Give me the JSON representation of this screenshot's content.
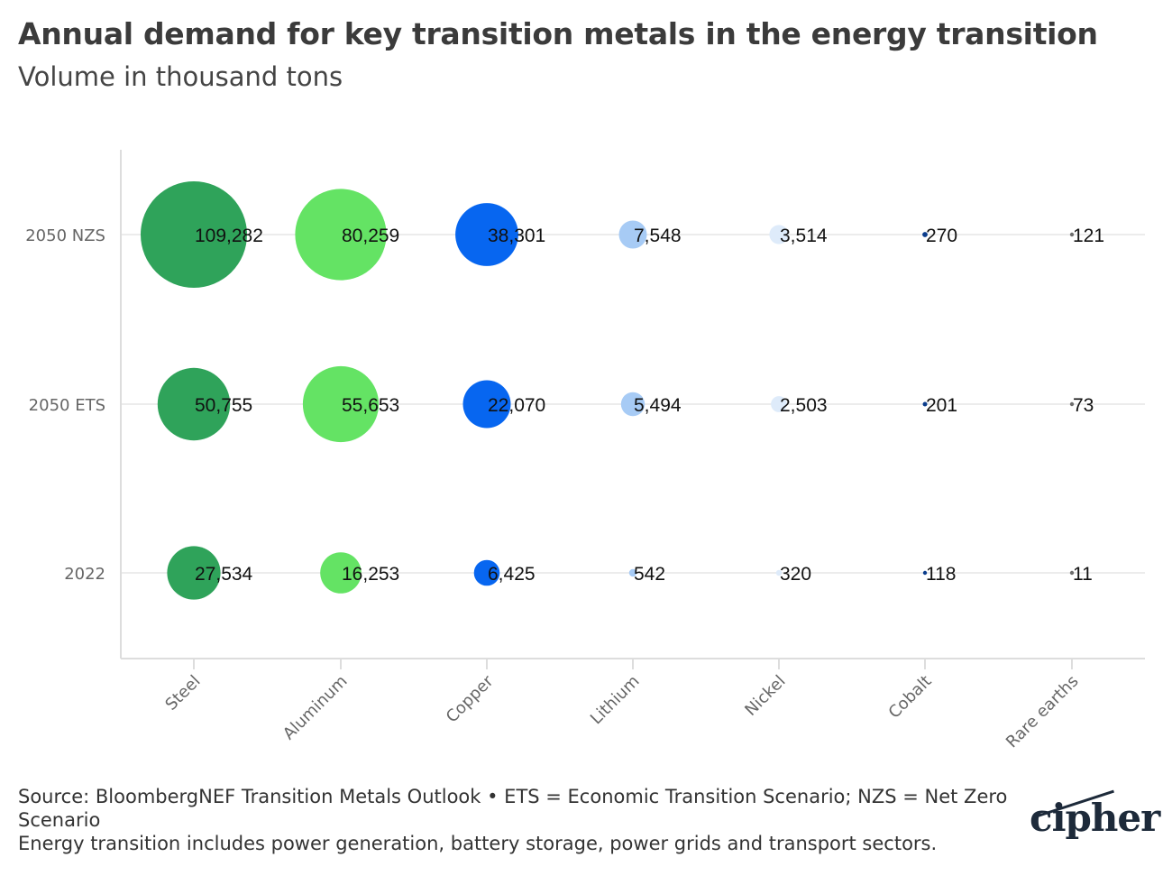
{
  "title": "Annual demand for key transition metals in the energy transition",
  "subtitle": "Volume in thousand tons",
  "footer": {
    "source": "Source: BloombergNEF Transition Metals Outlook • ETS = Economic Transition Scenario; NZS = Net Zero Scenario",
    "note": "Energy transition includes power generation, battery storage, power grids and transport sectors."
  },
  "logo": "cipher",
  "chart_data": {
    "type": "bubble",
    "categories": [
      "Steel",
      "Aluminum",
      "Copper",
      "Lithium",
      "Nickel",
      "Cobalt",
      "Rare earths"
    ],
    "rows": [
      "2050 NZS",
      "2050 ETS",
      "2022"
    ],
    "values": [
      [
        109282,
        80259,
        38301,
        7548,
        3514,
        270,
        121
      ],
      [
        50755,
        55653,
        22070,
        5494,
        2503,
        201,
        73
      ],
      [
        27534,
        16253,
        6425,
        542,
        320,
        118,
        11
      ]
    ],
    "labels": [
      [
        "109,282",
        "80,259",
        "38,301",
        "7,548",
        "3,514",
        "270",
        "121"
      ],
      [
        "50,755",
        "55,653",
        "22,070",
        "5,494",
        "2,503",
        "201",
        "73"
      ],
      [
        "27,534",
        "16,253",
        "6,425",
        "542",
        "320",
        "118",
        "11"
      ]
    ],
    "colors": [
      "#2fa35a",
      "#64e364",
      "#0766f0",
      "#a7cbf5",
      "#deebfa",
      "#0b3d8c",
      "#6e6e6e"
    ],
    "grid": true
  }
}
